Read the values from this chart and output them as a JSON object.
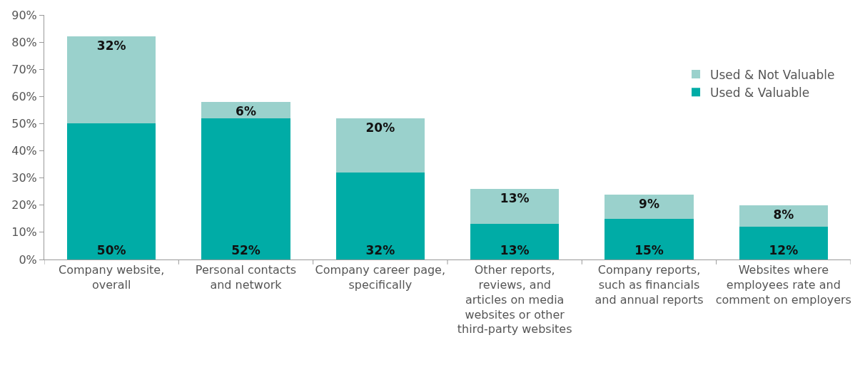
{
  "chart_data": {
    "type": "bar",
    "stacked": true,
    "categories": [
      "Company website, overall",
      "Personal contacts and network",
      "Company career page, specifically",
      "Other reports, reviews, and articles on media websites or other third-party websites",
      "Company reports, such as financials and annual reports",
      "Websites where employees rate and comment on employers"
    ],
    "series": [
      {
        "name": "Used & Valuable",
        "color": "#00aca6",
        "values": [
          50,
          52,
          32,
          13,
          15,
          12
        ],
        "value_labels": [
          "50%",
          "52%",
          "32%",
          "13%",
          "15%",
          "12%"
        ]
      },
      {
        "name": "Used & Not Valuable",
        "color": "#9ad1cc",
        "values": [
          32,
          6,
          20,
          13,
          9,
          8
        ],
        "value_labels": [
          "32%",
          "6%",
          "20%",
          "13%",
          "9%",
          "8%"
        ]
      }
    ],
    "ylim": [
      0,
      90
    ],
    "yticks": [
      {
        "value": 0,
        "label": "0%"
      },
      {
        "value": 10,
        "label": "10%"
      },
      {
        "value": 20,
        "label": "20%"
      },
      {
        "value": 30,
        "label": "30%"
      },
      {
        "value": 40,
        "label": "40%"
      },
      {
        "value": 50,
        "label": "50%"
      },
      {
        "value": 60,
        "label": "60%"
      },
      {
        "value": 70,
        "label": "70%"
      },
      {
        "value": 80,
        "label": "80%"
      },
      {
        "value": 90,
        "label": "90%"
      }
    ],
    "legend": "right"
  }
}
